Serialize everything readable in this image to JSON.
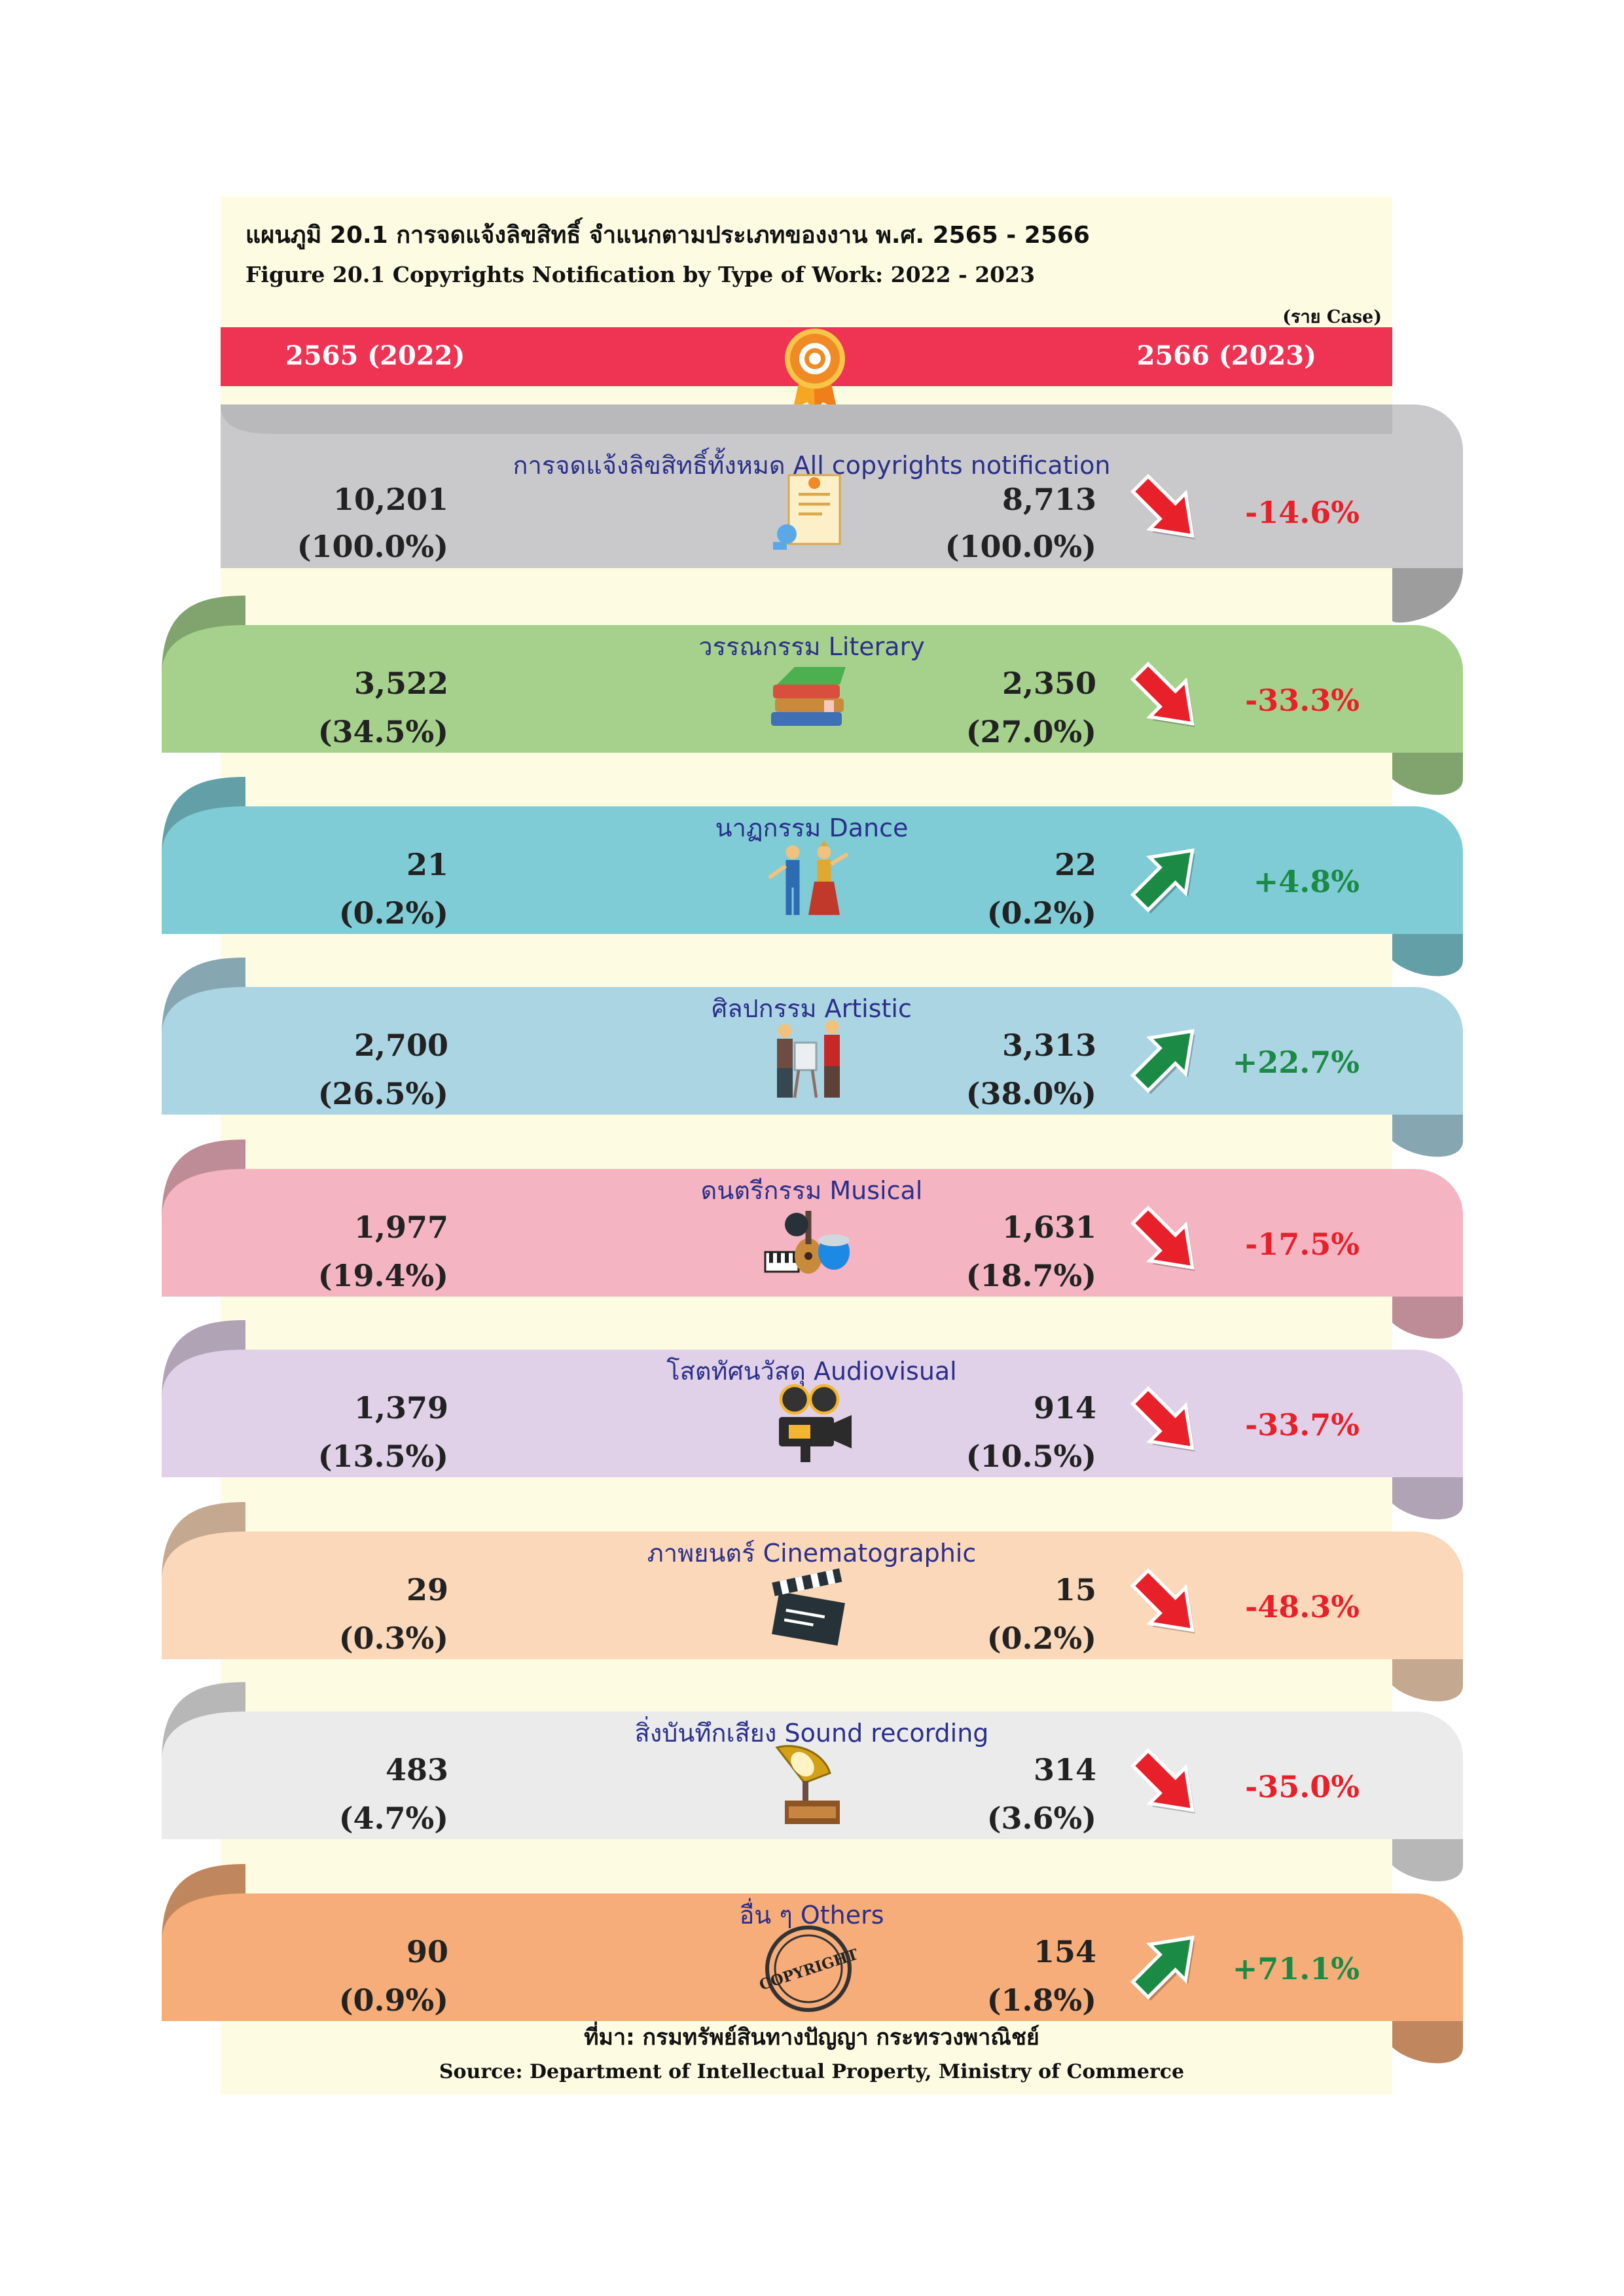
{
  "header": {
    "title_th": "แผนภูมิ 20.1 การจดแจ้งลิขสิทธิ์ จำแนกตามประเภทของงาน พ.ศ. 2565 - 2566",
    "title_en": "Figure   20.1 Copyrights Notification by Type of Work: 2022 - 2023",
    "unit": "(ราย  Case)",
    "year_left": "2565 (2022)",
    "year_right": "2566 (2023)"
  },
  "colors": {
    "year_bar": "#ee3353",
    "decrease": "#e8202a",
    "increase": "#1b8a45",
    "label": "#2b2f8a"
  },
  "chart_data": {
    "type": "table",
    "title": "แผนภูมิ 20.1 การจดแจ้งลิขสิทธิ์ จำแนกตามประเภทของงาน พ.ศ. 2565 - 2566",
    "columns": [
      "2565 (2022)",
      "2566 (2023)",
      "change"
    ],
    "rows": [
      {
        "label": "การจดแจ้งลิขสิทธิ์ทั้งหมด  All copyrights notification",
        "v2022": "10,201",
        "p2022": "(100.0%)",
        "v2023": "8,713",
        "p2023": "(100.0%)",
        "change": "-14.6%",
        "direction": "down",
        "color": "#c9c9cb",
        "icon": "certificate-icon"
      },
      {
        "label": "วรรณกรรม Literary",
        "v2022": "3,522",
        "p2022": "(34.5%)",
        "v2023": "2,350",
        "p2023": "(27.0%)",
        "change": "-33.3%",
        "direction": "down",
        "color": "#a6d18c",
        "icon": "books-icon"
      },
      {
        "label": "นาฏกรรม Dance",
        "v2022": "21",
        "p2022": "(0.2%)",
        "v2023": "22",
        "p2023": "(0.2%)",
        "change": "+4.8%",
        "direction": "up",
        "color": "#7fccd6",
        "icon": "dancers-icon"
      },
      {
        "label": "ศิลปกรรม Artistic",
        "v2022": "2,700",
        "p2022": "(26.5%)",
        "v2023": "3,313",
        "p2023": "(38.0%)",
        "change": "+22.7%",
        "direction": "up",
        "color": "#acd5e4",
        "icon": "artists-icon"
      },
      {
        "label": "ดนตรีกรรม Musical",
        "v2022": "1,977",
        "p2022": "(19.4%)",
        "v2023": "1,631",
        "p2023": "(18.7%)",
        "change": "-17.5%",
        "direction": "down",
        "color": "#f4b4c2",
        "icon": "instruments-icon"
      },
      {
        "label": "โสตทัศนวัสดุ Audiovisual",
        "v2022": "1,379",
        "p2022": "(13.5%)",
        "v2023": "914",
        "p2023": "(10.5%)",
        "change": "-33.7%",
        "direction": "down",
        "color": "#e0d1e8",
        "icon": "film-camera-icon"
      },
      {
        "label": "ภาพยนตร์ Cinematographic",
        "v2022": "29",
        "p2022": "(0.3%)",
        "v2023": "15",
        "p2023": "(0.2%)",
        "change": "-48.3%",
        "direction": "down",
        "color": "#fbd8b9",
        "icon": "clapperboard-icon"
      },
      {
        "label": "สิ่งบันทึกเสียง Sound recording",
        "v2022": "483",
        "p2022": "(4.7%)",
        "v2023": "314",
        "p2023": "(3.6%)",
        "change": "-35.0%",
        "direction": "down",
        "color": "#ebebeb",
        "icon": "gramophone-icon"
      },
      {
        "label": "อื่น ๆ Others",
        "v2022": "90",
        "p2022": "(0.9%)",
        "v2023": "154",
        "p2023": "(1.8%)",
        "change": "+71.1%",
        "direction": "up",
        "color": "#f6ad79",
        "icon": "copyright-stamp-icon",
        "stamp_text": "COPYRIGHT"
      }
    ]
  },
  "footer": {
    "source_th": "ที่มา: กรมทรัพย์สินทางปัญญา  กระทรวงพาณิชย์",
    "source_en": "Source: Department of Intellectual Property,  Ministry of Commerce"
  }
}
